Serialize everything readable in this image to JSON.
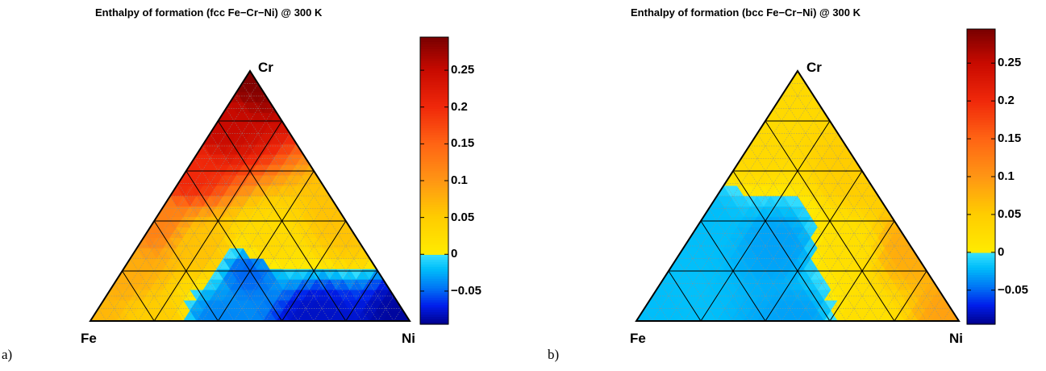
{
  "chart_data": [
    {
      "type": "heatmap",
      "plot": "ternary",
      "panel_label": "a)",
      "title": "Enthalpy of formation (fcc Fe−Cr−Ni) @ 300 K",
      "vertices": {
        "left": "Fe",
        "top": "Cr",
        "right": "Ni"
      },
      "colorbar": {
        "range": [
          -0.095,
          0.295
        ],
        "ticks": [
          -0.05,
          0,
          0.05,
          0.1,
          0.15,
          0.2,
          0.25
        ],
        "tick_labels": [
          "−0.05",
          "0",
          "0.05",
          "0.1",
          "0.15",
          "0.2",
          "0.25"
        ],
        "colormap": "yellow-orange-red for positive values, cyan-blue for negative values"
      },
      "value_samples": [
        {
          "Fe": 0.0,
          "Cr": 1.0,
          "Ni": 0.0,
          "value": 0.29
        },
        {
          "Fe": 0.2,
          "Cr": 0.8,
          "Ni": 0.0,
          "value": 0.25
        },
        {
          "Fe": 0.4,
          "Cr": 0.6,
          "Ni": 0.0,
          "value": 0.2
        },
        {
          "Fe": 0.6,
          "Cr": 0.4,
          "Ni": 0.0,
          "value": 0.12
        },
        {
          "Fe": 0.8,
          "Cr": 0.2,
          "Ni": 0.0,
          "value": 0.08
        },
        {
          "Fe": 1.0,
          "Cr": 0.0,
          "Ni": 0.0,
          "value": 0.07
        },
        {
          "Fe": 0.8,
          "Cr": 0.0,
          "Ni": 0.2,
          "value": 0.05
        },
        {
          "Fe": 0.6,
          "Cr": 0.0,
          "Ni": 0.4,
          "value": -0.04
        },
        {
          "Fe": 0.3,
          "Cr": 0.0,
          "Ni": 0.7,
          "value": -0.08
        },
        {
          "Fe": 0.0,
          "Cr": 0.0,
          "Ni": 1.0,
          "value": -0.09
        },
        {
          "Fe": 0.0,
          "Cr": 0.4,
          "Ni": 0.6,
          "value": 0.06
        },
        {
          "Fe": 0.3,
          "Cr": 0.3,
          "Ni": 0.4,
          "value": 0.03
        },
        {
          "Fe": 0.4,
          "Cr": 0.2,
          "Ni": 0.4,
          "value": -0.05
        },
        {
          "Fe": 0.5,
          "Cr": 0.3,
          "Ni": 0.2,
          "value": 0.06
        }
      ]
    },
    {
      "type": "heatmap",
      "plot": "ternary",
      "panel_label": "b)",
      "title": "Enthalpy of formation (bcc Fe−Cr−Ni) @ 300 K",
      "vertices": {
        "left": "Fe",
        "top": "Cr",
        "right": "Ni"
      },
      "colorbar": {
        "range": [
          -0.095,
          0.295
        ],
        "ticks": [
          -0.05,
          0,
          0.05,
          0.1,
          0.15,
          0.2,
          0.25
        ],
        "tick_labels": [
          "−0.05",
          "0",
          "0.05",
          "0.1",
          "0.15",
          "0.2",
          "0.25"
        ],
        "colormap": "yellow-orange-red for positive values, cyan-blue for negative values"
      },
      "value_samples": [
        {
          "Fe": 0.0,
          "Cr": 1.0,
          "Ni": 0.0,
          "value": 0.03
        },
        {
          "Fe": 0.3,
          "Cr": 0.7,
          "Ni": 0.0,
          "value": 0.03
        },
        {
          "Fe": 0.6,
          "Cr": 0.4,
          "Ni": 0.0,
          "value": -0.02
        },
        {
          "Fe": 1.0,
          "Cr": 0.0,
          "Ni": 0.0,
          "value": -0.02
        },
        {
          "Fe": 0.5,
          "Cr": 0.0,
          "Ni": 0.5,
          "value": -0.03
        },
        {
          "Fe": 0.3,
          "Cr": 0.0,
          "Ni": 0.7,
          "value": 0.02
        },
        {
          "Fe": 0.0,
          "Cr": 0.0,
          "Ni": 1.0,
          "value": 0.09
        },
        {
          "Fe": 0.0,
          "Cr": 0.3,
          "Ni": 0.7,
          "value": 0.08
        },
        {
          "Fe": 0.0,
          "Cr": 0.6,
          "Ni": 0.4,
          "value": 0.05
        },
        {
          "Fe": 0.4,
          "Cr": 0.3,
          "Ni": 0.3,
          "value": -0.03
        },
        {
          "Fe": 0.2,
          "Cr": 0.3,
          "Ni": 0.5,
          "value": 0.02
        }
      ]
    }
  ]
}
